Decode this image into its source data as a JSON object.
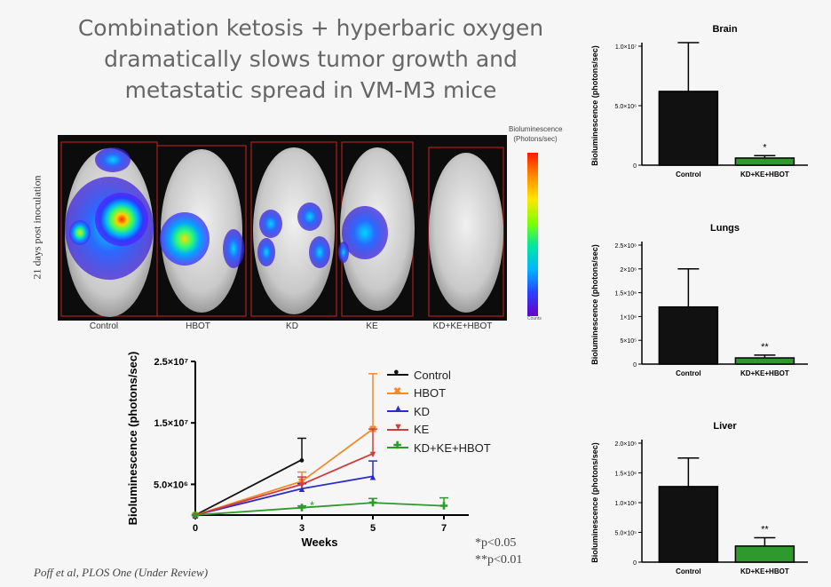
{
  "title": {
    "line1": "Combination ketosis + hyperbaric oxygen",
    "line2": "dramatically slows tumor growth and",
    "line3": "metastatic spread in VM-M3 mice"
  },
  "imaging": {
    "side_label": "21 days post inoculation",
    "scale_title": "Bioluminescence (Photons/sec)",
    "scale_foot": "Counts",
    "groups": [
      "Control",
      "HBOT",
      "KD",
      "KE",
      "KD+KE+HBOT"
    ]
  },
  "citation": "Poff et al, PLOS One (Under Review)",
  "pvalues": [
    "*p<0.05",
    "**p<0.01"
  ],
  "colors": {
    "Control": "#111111",
    "HBOT": "#f08a30",
    "KD": "#2c2ccc",
    "KE": "#d23c3c",
    "KD+KE+HBOT": "#2e9a2e",
    "bar_green": "#2e9a2e"
  },
  "chart_data": [
    {
      "type": "line",
      "title": "",
      "xlabel": "Weeks",
      "ylabel": "Bioluminescence (photons/sec)",
      "x": [
        0,
        3,
        5,
        7
      ],
      "xticks": [
        "0",
        "3",
        "5",
        "7"
      ],
      "ylim": [
        0,
        25000000
      ],
      "yticks": [
        5000000,
        15000000,
        25000000
      ],
      "ytick_labels": [
        "5.0×10⁶",
        "1.5×10⁷",
        "2.5×10⁷"
      ],
      "series": [
        {
          "name": "Control",
          "marker": "●",
          "x": [
            0,
            3
          ],
          "values": [
            0,
            9000000
          ],
          "err": [
            0,
            3500000
          ]
        },
        {
          "name": "HBOT",
          "marker": "✖",
          "x": [
            0,
            3,
            5
          ],
          "values": [
            0,
            5500000,
            14000000
          ],
          "err": [
            0,
            1500000,
            9000000
          ]
        },
        {
          "name": "KD",
          "marker": "▲",
          "x": [
            0,
            3,
            5
          ],
          "values": [
            0,
            4300000,
            6300000
          ],
          "err": [
            0,
            800000,
            2500000
          ]
        },
        {
          "name": "KE",
          "marker": "▼",
          "x": [
            0,
            3,
            5
          ],
          "values": [
            0,
            5000000,
            10000000
          ],
          "err": [
            0,
            1200000,
            4000000
          ]
        },
        {
          "name": "KD+KE+HBOT",
          "marker": "✚",
          "x": [
            0,
            3,
            5,
            7
          ],
          "values": [
            0,
            1200000,
            2000000,
            1500000
          ],
          "err": [
            0,
            300000,
            700000,
            1300000
          ]
        }
      ],
      "annotation": "*"
    },
    {
      "type": "bar",
      "title": "Brain",
      "ylabel": "Bioluminescence (photons/sec)",
      "categories": [
        "Control",
        "KD+KE+HBOT"
      ],
      "values": [
        6200000,
        600000
      ],
      "err": [
        4100000,
        200000
      ],
      "ylim": [
        0,
        10000000
      ],
      "yticks": [
        0,
        5000000,
        10000000
      ],
      "ytick_labels": [
        "0",
        "5.0×10⁶",
        "1.0×10⁷"
      ],
      "significance": "*"
    },
    {
      "type": "bar",
      "title": "Lungs",
      "ylabel": "Bioluminescence (photons/sec)",
      "categories": [
        "Control",
        "KD+KE+HBOT"
      ],
      "values": [
        1200000,
        130000
      ],
      "err": [
        800000,
        60000
      ],
      "ylim": [
        0,
        2500000
      ],
      "yticks": [
        0,
        500000,
        1000000,
        1500000,
        2000000,
        2500000
      ],
      "ytick_labels": [
        "0",
        "5×10⁵",
        "1×10⁶",
        "1.5×10⁶",
        "2×10⁶",
        "2.5×10⁶"
      ],
      "significance": "**"
    },
    {
      "type": "bar",
      "title": "Liver",
      "ylabel": "Bioluminescence (photons/sec)",
      "categories": [
        "Control",
        "KD+KE+HBOT"
      ],
      "values": [
        1270000,
        270000
      ],
      "err": [
        480000,
        140000
      ],
      "ylim": [
        0,
        2000000
      ],
      "yticks": [
        0,
        500000,
        1000000,
        1500000,
        2000000
      ],
      "ytick_labels": [
        "0",
        "5.0×10⁵",
        "1.0×10⁶",
        "1.5×10⁶",
        "2.0×10⁶"
      ],
      "significance": "**"
    }
  ]
}
